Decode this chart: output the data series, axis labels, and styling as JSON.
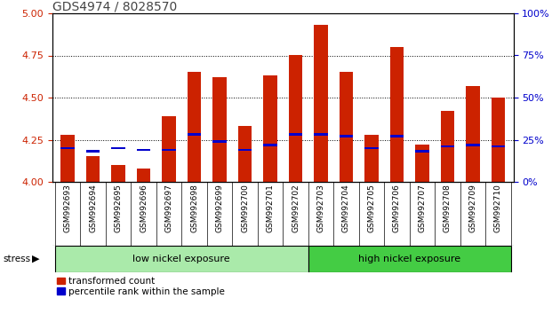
{
  "title": "GDS4974 / 8028570",
  "samples": [
    "GSM992693",
    "GSM992694",
    "GSM992695",
    "GSM992696",
    "GSM992697",
    "GSM992698",
    "GSM992699",
    "GSM992700",
    "GSM992701",
    "GSM992702",
    "GSM992703",
    "GSM992704",
    "GSM992705",
    "GSM992706",
    "GSM992707",
    "GSM992708",
    "GSM992709",
    "GSM992710"
  ],
  "red_values": [
    4.28,
    4.15,
    4.1,
    4.08,
    4.39,
    4.65,
    4.62,
    4.33,
    4.63,
    4.75,
    4.93,
    4.65,
    4.28,
    4.8,
    4.22,
    4.42,
    4.57,
    4.5
  ],
  "blue_pct": [
    20,
    18,
    20,
    19,
    19,
    28,
    24,
    19,
    22,
    28,
    28,
    27,
    20,
    27,
    18,
    21,
    22,
    21
  ],
  "ymin": 4.0,
  "ymax": 5.0,
  "yticks_left": [
    4.0,
    4.25,
    4.5,
    4.75,
    5.0
  ],
  "yticks_right": [
    0,
    25,
    50,
    75,
    100
  ],
  "low_group_n": 10,
  "low_label": "low nickel exposure",
  "high_label": "high nickel exposure",
  "low_color": "#aaeaaa",
  "high_color": "#44cc44",
  "red_color": "#cc2200",
  "blue_color": "#0000cc",
  "title_color": "#444444",
  "title_fontsize": 10,
  "tick_fontsize": 6.5,
  "group_fontsize": 8,
  "legend_fontsize": 7.5,
  "bar_width": 0.55,
  "blue_bar_height": 0.014,
  "left_label_color": "#cc2200",
  "right_label_color": "#0000cc"
}
